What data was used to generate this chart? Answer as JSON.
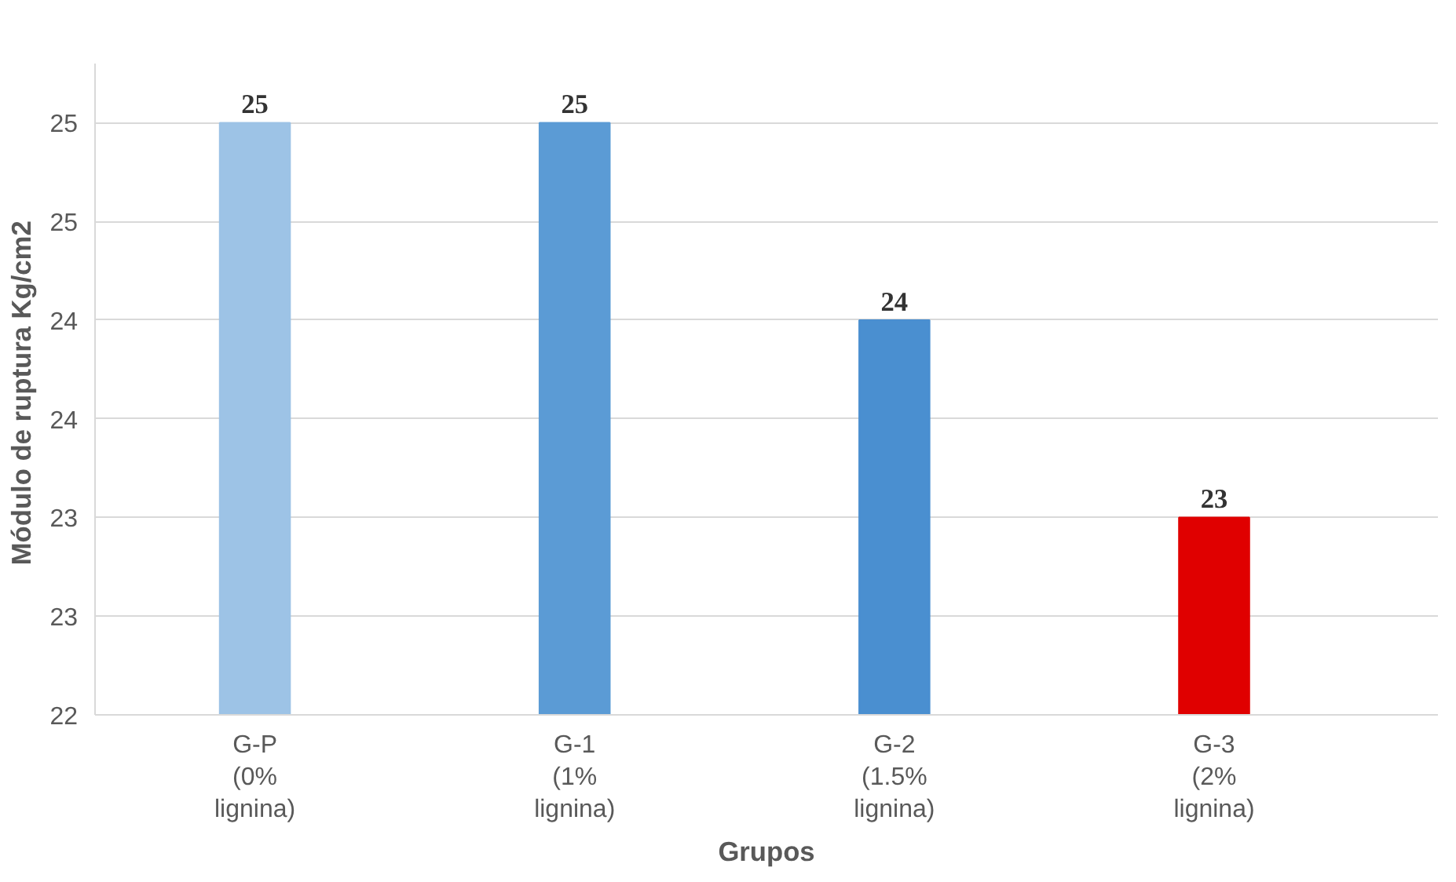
{
  "chart_data": {
    "type": "bar",
    "xlabel": "Grupos",
    "ylabel": "Módulo de ruptura  Kg/cm2",
    "categories": [
      "G-P\n(0%\nlignina)",
      "G-1\n(1%\nlignina)",
      "G-2\n(1.5%\nlignina)",
      "G-3\n(2%\nlignina)"
    ],
    "values": [
      25,
      25,
      24,
      23
    ],
    "colors": [
      "#9dc3e6",
      "#5b9bd5",
      "#4a8fd0",
      "#e00000"
    ],
    "value_labels": [
      "25",
      "25",
      "24",
      "23"
    ],
    "ylim": [
      22,
      25.3
    ],
    "yticks": [
      22,
      {
        "value": 22.5,
        "label": "23"
      },
      23,
      {
        "value": 23.5,
        "label": "24"
      },
      24,
      {
        "value": 24.5,
        "label": "25"
      },
      25
    ],
    "grid": "y"
  }
}
